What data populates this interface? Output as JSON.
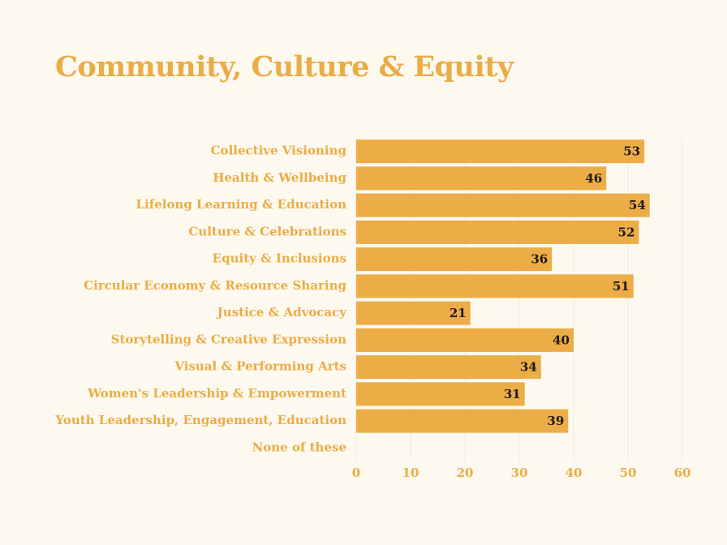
{
  "colors": {
    "background": "#fdf9ef",
    "bar": "#ecac46",
    "text": "#eaac45",
    "grid": "#f3ecd8",
    "data_label": "#1a1a1a"
  },
  "chart_data": {
    "type": "bar",
    "orientation": "horizontal",
    "title": "Community, Culture & Equity",
    "xlabel": "",
    "ylabel": "",
    "categories": [
      "Collective Visioning",
      "Health & Wellbeing",
      "Lifelong Learning & Education",
      "Culture & Celebrations",
      "Equity & Inclusions",
      "Circular Economy & Resource Sharing",
      "Justice & Advocacy",
      "Storytelling & Creative Expression",
      "Visual & Performing Arts",
      "Women's Leadership & Empowerment",
      "Youth Leadership, Engagement, Education",
      "None of these"
    ],
    "values": [
      53,
      46,
      54,
      52,
      36,
      51,
      21,
      40,
      34,
      31,
      39,
      0
    ],
    "xlim": [
      0,
      60
    ],
    "xticks": [
      0,
      10,
      20,
      30,
      40,
      50,
      60
    ],
    "grid": true,
    "data_labels": true,
    "legend": "none"
  }
}
